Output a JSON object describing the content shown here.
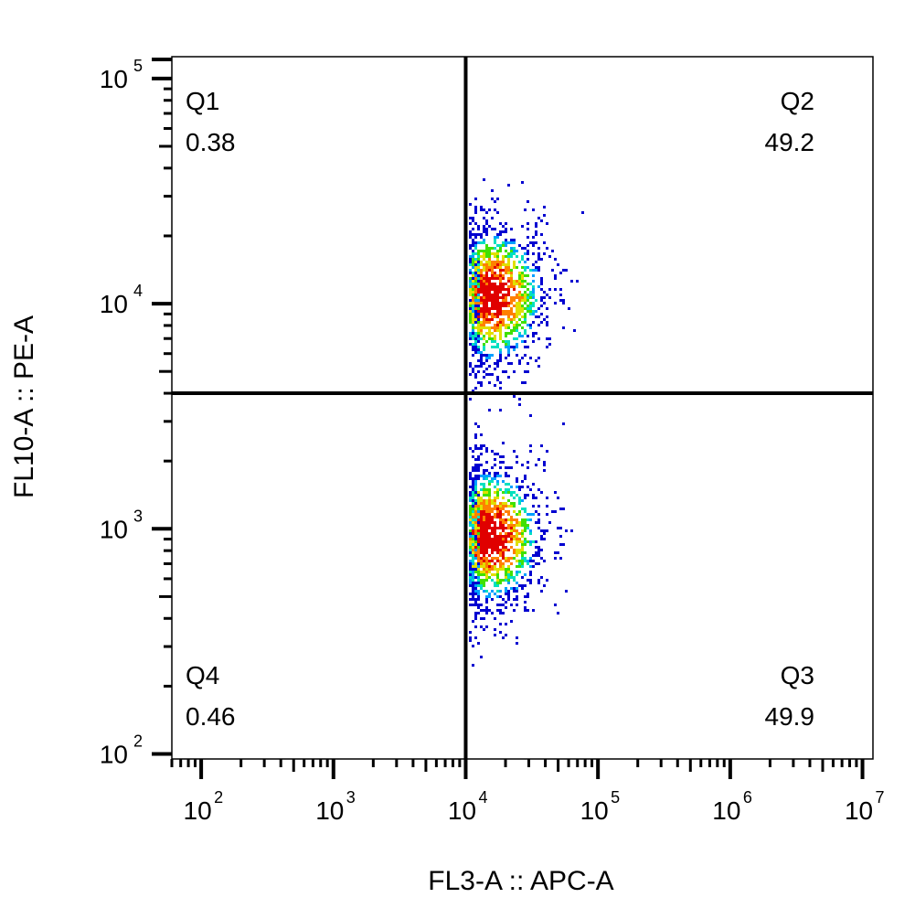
{
  "chart_data": {
    "type": "scatter",
    "title": "",
    "xlabel": "FL3-A :: APC-A",
    "ylabel": "FL10-A :: PE-A",
    "x_scale": "log",
    "y_scale": "log",
    "xlim": [
      60,
      12000000
    ],
    "ylim": [
      95,
      125000
    ],
    "x_ticks": [
      {
        "base": "10",
        "exp": "2",
        "value": 100
      },
      {
        "base": "10",
        "exp": "3",
        "value": 1000
      },
      {
        "base": "10",
        "exp": "4",
        "value": 10000
      },
      {
        "base": "10",
        "exp": "5",
        "value": 100000
      },
      {
        "base": "10",
        "exp": "6",
        "value": 1000000
      },
      {
        "base": "10",
        "exp": "7",
        "value": 10000000
      }
    ],
    "y_ticks": [
      {
        "base": "10",
        "exp": "2",
        "value": 100
      },
      {
        "base": "10",
        "exp": "3",
        "value": 1000
      },
      {
        "base": "10",
        "exp": "4",
        "value": 10000
      },
      {
        "base": "10",
        "exp": "5",
        "value": 100000
      }
    ],
    "gate": {
      "x": 10000,
      "y": 4000
    },
    "quadrants": [
      {
        "name": "Q1",
        "percent": "0.38",
        "position": "top-left"
      },
      {
        "name": "Q2",
        "percent": "49.2",
        "position": "top-right"
      },
      {
        "name": "Q3",
        "percent": "49.9",
        "position": "bottom-right"
      },
      {
        "name": "Q4",
        "percent": "0.46",
        "position": "bottom-left"
      }
    ],
    "populations": [
      {
        "name": "upper",
        "center_x": 15000,
        "center_y": 11000,
        "events": 1500
      },
      {
        "name": "lower",
        "center_x": 14500,
        "center_y": 950,
        "events": 1500
      }
    ],
    "color_scale": [
      "#0000d0",
      "#00a0ff",
      "#00e0c0",
      "#40e000",
      "#e0e000",
      "#ff8000",
      "#e00000"
    ]
  }
}
